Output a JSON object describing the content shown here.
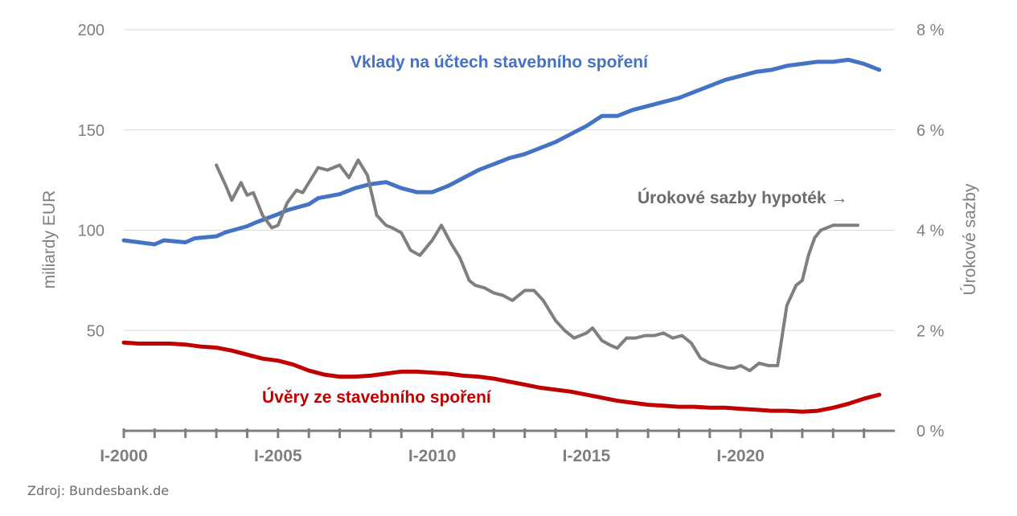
{
  "source": "Zdroj: Bundesbank.de",
  "chart_data": {
    "type": "line",
    "title": "",
    "ylabel": "miliardy EUR",
    "y2label": "Úrokové sazby",
    "ylim": [
      0,
      200
    ],
    "y2lim": [
      0,
      8
    ],
    "yticks": [
      "200",
      "150",
      "100",
      "50"
    ],
    "y2ticks": [
      "8 %",
      "6 %",
      "4 %",
      "2 %",
      "0 %"
    ],
    "xlim": [
      2000.0,
      2025.0
    ],
    "xticks": [
      {
        "label": "I-2000",
        "x": 2000
      },
      {
        "label": "I-2005",
        "x": 2005
      },
      {
        "label": "I-2010",
        "x": 2010
      },
      {
        "label": "I-2015",
        "x": 2015
      },
      {
        "label": "I-2020",
        "x": 2020
      }
    ],
    "grid": true,
    "colors": {
      "deposits": "#4472c4",
      "loans": "#c00000",
      "rates": "#7f7f7f"
    },
    "series": [
      {
        "name": "Vklady na účtech stavebního spoření",
        "axis": "left",
        "color": "#4472c4",
        "x": [
          2000.0,
          2000.5,
          2001.0,
          2001.3,
          2002.0,
          2002.3,
          2003.0,
          2003.3,
          2004.0,
          2004.3,
          2005.0,
          2005.3,
          2006.0,
          2006.3,
          2007.0,
          2007.5,
          2008.0,
          2008.5,
          2009.0,
          2009.5,
          2010.0,
          2010.5,
          2011.0,
          2011.5,
          2012.0,
          2012.5,
          2013.0,
          2013.5,
          2014.0,
          2014.5,
          2015.0,
          2015.5,
          2016.0,
          2016.5,
          2017.0,
          2017.5,
          2018.0,
          2018.5,
          2019.0,
          2019.5,
          2020.0,
          2020.5,
          2021.0,
          2021.5,
          2022.0,
          2022.5,
          2023.0,
          2023.5,
          2024.0,
          2024.5
        ],
        "y": [
          95,
          94,
          93,
          95,
          94,
          96,
          97,
          99,
          102,
          104,
          108,
          110,
          113,
          116,
          118,
          121,
          123,
          124,
          121,
          119,
          119,
          122,
          126,
          130,
          133,
          136,
          138,
          141,
          144,
          148,
          152,
          157,
          157,
          160,
          162,
          164,
          166,
          169,
          172,
          175,
          177,
          179,
          180,
          182,
          183,
          184,
          184,
          185,
          183,
          180
        ]
      },
      {
        "name": "Úvěry ze stavebního spoření",
        "axis": "left",
        "color": "#c00000",
        "x": [
          2000.0,
          2000.5,
          2001.0,
          2001.5,
          2002.0,
          2002.5,
          2003.0,
          2003.5,
          2004.0,
          2004.5,
          2005.0,
          2005.5,
          2006.0,
          2006.5,
          2007.0,
          2007.5,
          2008.0,
          2008.5,
          2009.0,
          2009.5,
          2010.0,
          2010.5,
          2011.0,
          2011.5,
          2012.0,
          2012.5,
          2013.0,
          2013.5,
          2014.0,
          2014.5,
          2015.0,
          2015.5,
          2016.0,
          2016.5,
          2017.0,
          2017.5,
          2018.0,
          2018.5,
          2019.0,
          2019.5,
          2020.0,
          2020.5,
          2021.0,
          2021.5,
          2022.0,
          2022.5,
          2023.0,
          2023.5,
          2024.0,
          2024.5
        ],
        "y": [
          44,
          43.5,
          43.5,
          43.5,
          43,
          42,
          41.5,
          40,
          38,
          36,
          35,
          33,
          30,
          28,
          27,
          27,
          27.5,
          28.5,
          29.5,
          29.5,
          29,
          28.5,
          27.5,
          27,
          26,
          24.5,
          23,
          21.5,
          20.5,
          19.5,
          18,
          16.5,
          15,
          14,
          13,
          12.5,
          12,
          12,
          11.5,
          11.5,
          11,
          10.5,
          10,
          10,
          9.5,
          10,
          11.5,
          13.5,
          16,
          18
        ]
      },
      {
        "name": "Úrokové sazby hypoték",
        "axis": "right",
        "color": "#7f7f7f",
        "x": [
          2003.0,
          2003.3,
          2003.5,
          2003.8,
          2004.0,
          2004.2,
          2004.5,
          2004.8,
          2005.0,
          2005.3,
          2005.6,
          2005.8,
          2006.0,
          2006.3,
          2006.6,
          2007.0,
          2007.3,
          2007.6,
          2007.9,
          2008.2,
          2008.5,
          2008.7,
          2009.0,
          2009.3,
          2009.6,
          2010.0,
          2010.3,
          2010.6,
          2010.9,
          2011.2,
          2011.4,
          2011.7,
          2012.0,
          2012.3,
          2012.6,
          2013.0,
          2013.3,
          2013.6,
          2014.0,
          2014.3,
          2014.6,
          2015.0,
          2015.2,
          2015.5,
          2015.8,
          2016.0,
          2016.3,
          2016.6,
          2016.9,
          2017.2,
          2017.5,
          2017.8,
          2018.1,
          2018.4,
          2018.7,
          2019.0,
          2019.3,
          2019.6,
          2019.8,
          2020.0,
          2020.3,
          2020.6,
          2020.9,
          2021.2,
          2021.5,
          2021.8,
          2022.0,
          2022.2,
          2022.4,
          2022.6,
          2022.8,
          2023.0,
          2023.2,
          2023.4,
          2023.6,
          2023.8
        ],
        "y": [
          5.3,
          4.9,
          4.6,
          4.95,
          4.7,
          4.75,
          4.3,
          4.05,
          4.1,
          4.55,
          4.8,
          4.75,
          4.95,
          5.25,
          5.2,
          5.3,
          5.05,
          5.4,
          5.1,
          4.3,
          4.1,
          4.05,
          3.95,
          3.6,
          3.5,
          3.8,
          4.1,
          3.75,
          3.45,
          3.0,
          2.9,
          2.85,
          2.75,
          2.7,
          2.6,
          2.8,
          2.8,
          2.6,
          2.2,
          2.0,
          1.85,
          1.95,
          2.05,
          1.8,
          1.7,
          1.65,
          1.85,
          1.85,
          1.9,
          1.9,
          1.95,
          1.85,
          1.9,
          1.75,
          1.45,
          1.35,
          1.3,
          1.25,
          1.25,
          1.3,
          1.2,
          1.35,
          1.3,
          1.3,
          2.5,
          2.9,
          3.0,
          3.5,
          3.85,
          4.0,
          4.05,
          4.1,
          4.1,
          4.1,
          4.1,
          4.1
        ]
      }
    ],
    "annotations": [
      {
        "text": "Úrokové sazby hypoték →",
        "series": 2
      }
    ]
  }
}
